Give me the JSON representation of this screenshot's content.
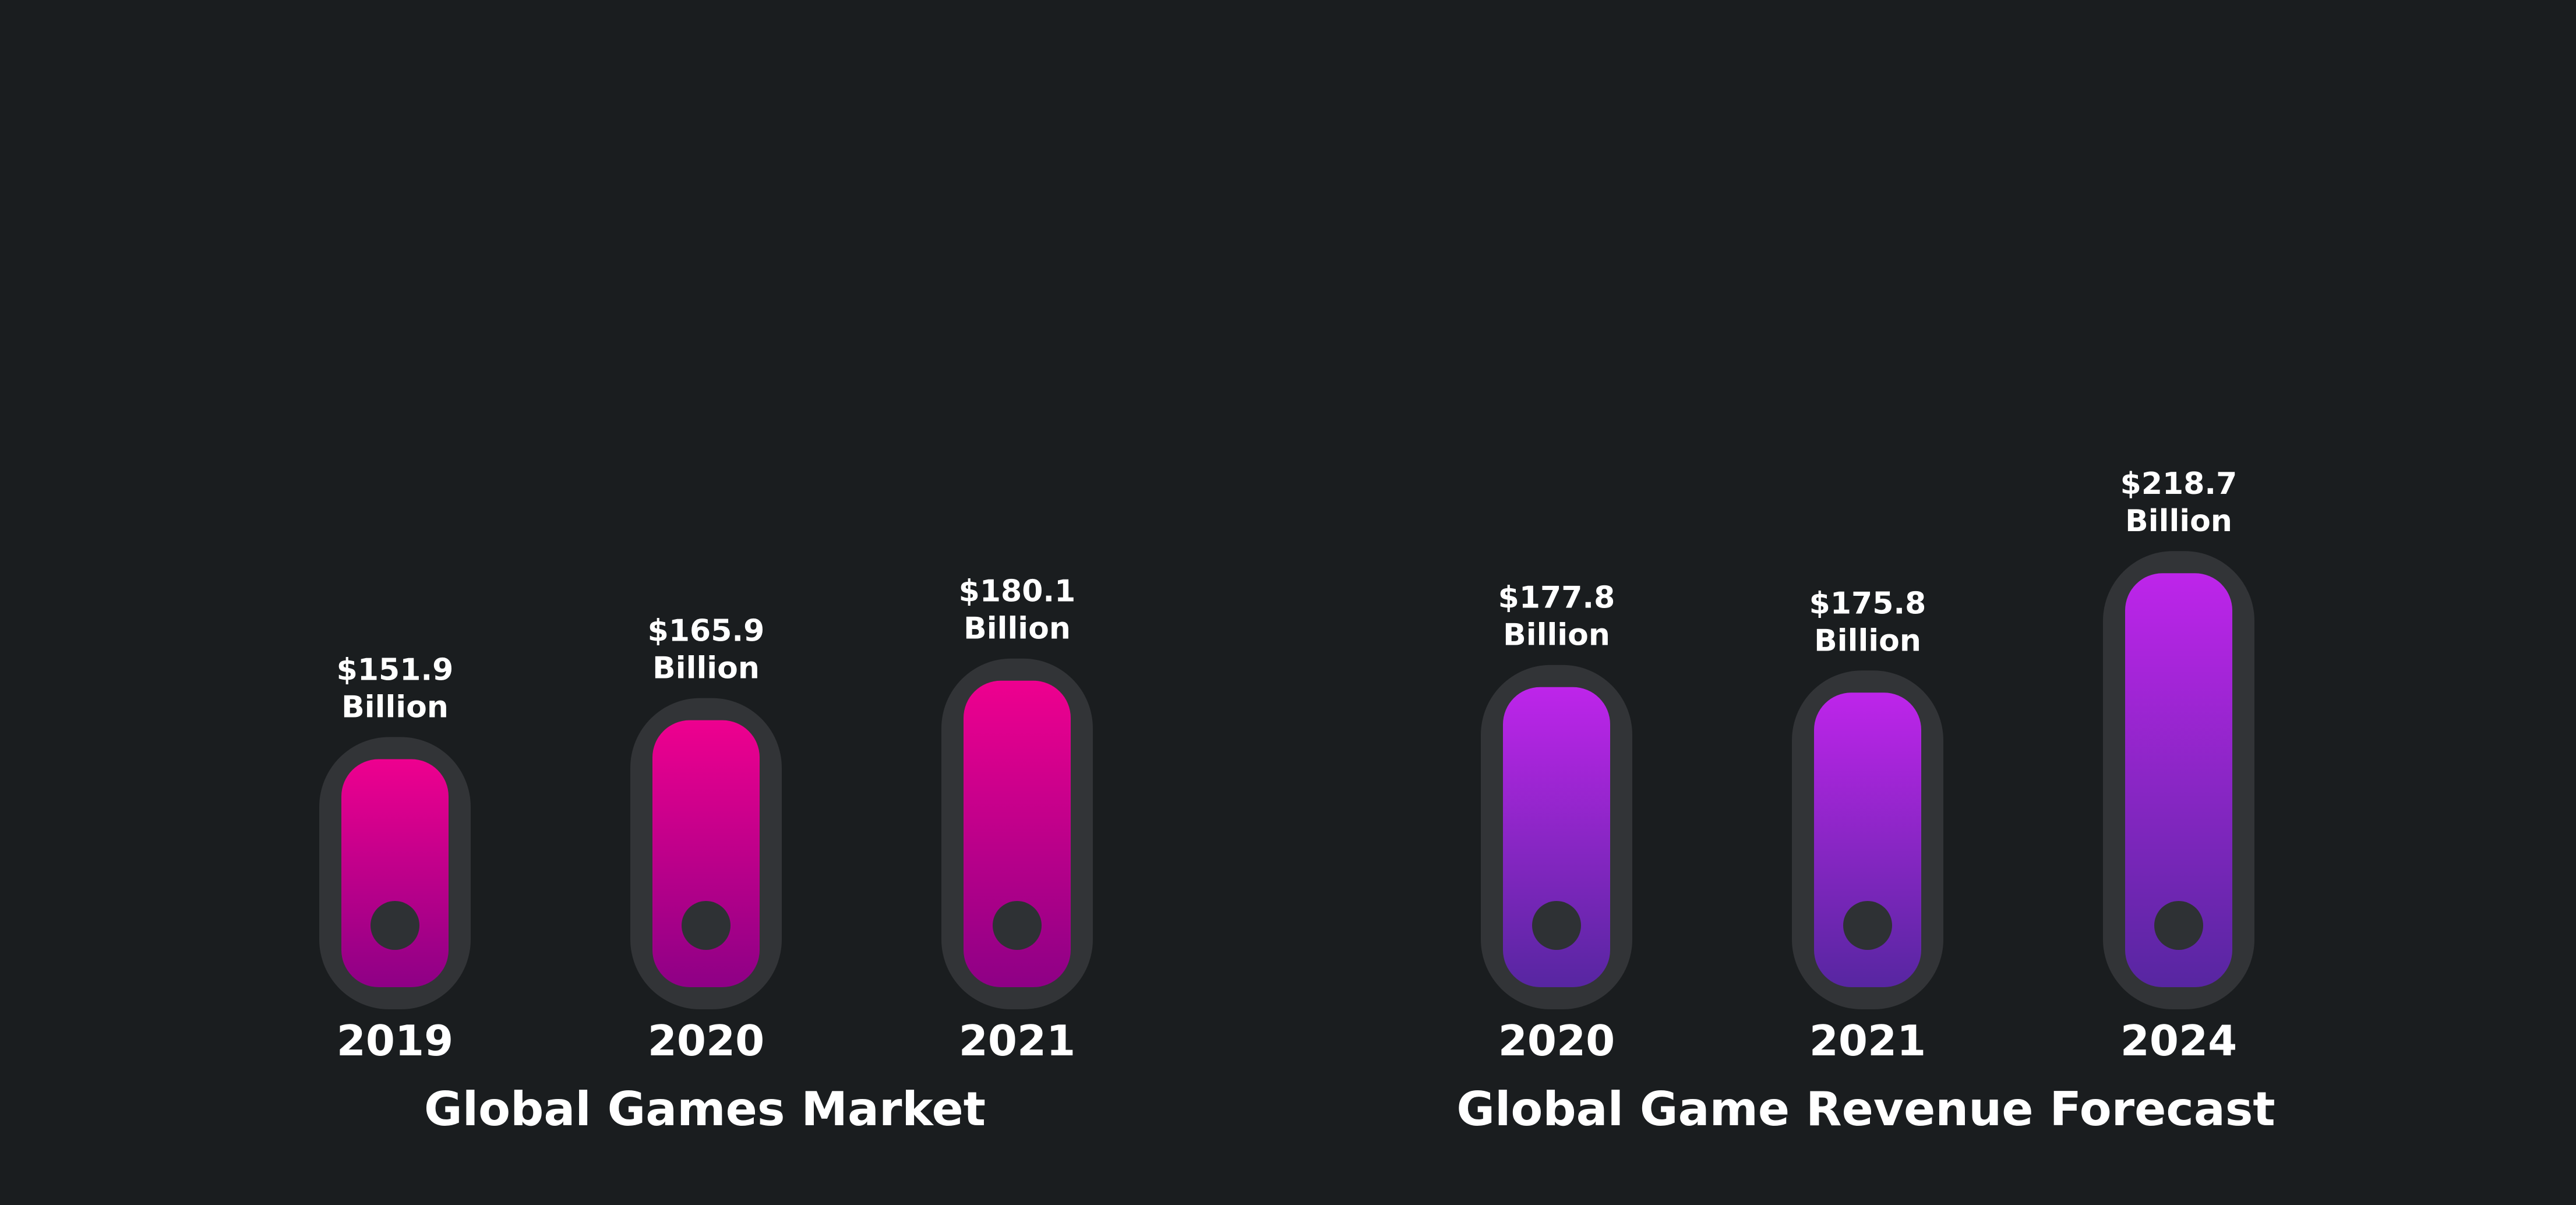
{
  "background": "#1a1d1f",
  "track_color": "#323437",
  "dot_color": "#2e3134",
  "label_color": "#ffffff",
  "chart_data": [
    {
      "type": "bar",
      "title": "Global Games Market",
      "categories": [
        "2019",
        "2020",
        "2021"
      ],
      "values": [
        151.9,
        165.9,
        180.1
      ],
      "value_labels": [
        [
          "$151.9",
          "Billion"
        ],
        [
          "$165.9",
          "Billion"
        ],
        [
          "$180.1",
          "Billion"
        ]
      ],
      "gradient": {
        "top": "#ee008f",
        "bottom": "#8e0086"
      }
    },
    {
      "type": "bar",
      "title": "Global Game Revenue Forecast",
      "categories": [
        "2020",
        "2021",
        "2024"
      ],
      "values": [
        177.8,
        175.8,
        218.7
      ],
      "value_labels": [
        [
          "$177.8",
          "Billion"
        ],
        [
          "$175.8",
          "Billion"
        ],
        [
          "$218.7",
          "Billion"
        ]
      ],
      "gradient": {
        "top": "#be25ea",
        "bottom": "#5726a1"
      }
    }
  ]
}
